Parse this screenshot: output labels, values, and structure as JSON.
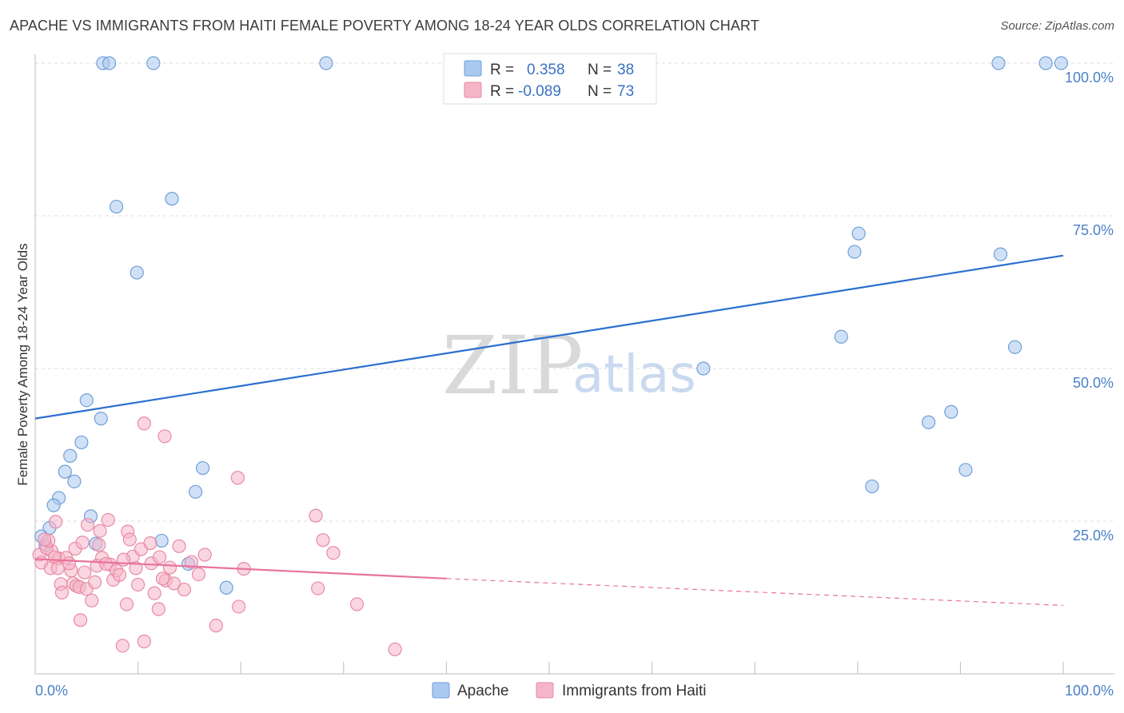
{
  "title": "APACHE VS IMMIGRANTS FROM HAITI FEMALE POVERTY AMONG 18-24 YEAR OLDS CORRELATION CHART",
  "source": "Source: ZipAtlas.com",
  "watermark": {
    "zip": "ZIP",
    "atlas": "atlas"
  },
  "colors": {
    "apache_fill": "#a9c9f0",
    "apache_stroke": "#6f9fd8",
    "apache_line": "#2a6fd0",
    "haiti_fill": "#f5b5c8",
    "haiti_stroke": "#e88aa6",
    "haiti_line": "#e8739a",
    "tick_label": "#4a80c8",
    "grid": "#dddddd"
  },
  "legend": {
    "rows": [
      {
        "series": "apache",
        "r_label": "R =",
        "r_value": "0.358",
        "n_label": "N =",
        "n_value": "38"
      },
      {
        "series": "haiti",
        "r_label": "R =",
        "r_value": "-0.089",
        "n_label": "N =",
        "n_value": "73"
      }
    ]
  },
  "chart_data": {
    "type": "scatter",
    "title": "APACHE VS IMMIGRANTS FROM HAITI FEMALE POVERTY AMONG 18-24 YEAR OLDS CORRELATION CHART",
    "xlabel": "",
    "ylabel": "Female Poverty Among 18-24 Year Olds",
    "xlim": [
      0,
      100
    ],
    "ylim": [
      0,
      100
    ],
    "x_tick_labels": [
      {
        "value": 0,
        "label": "0.0%"
      },
      {
        "value": 100,
        "label": "100.0%"
      }
    ],
    "y_tick_labels": [
      {
        "value": 25,
        "label": "25.0%"
      },
      {
        "value": 50,
        "label": "50.0%"
      },
      {
        "value": 75,
        "label": "75.0%"
      },
      {
        "value": 100,
        "label": "100.0%"
      }
    ],
    "grid": true,
    "legend_position": "top-center",
    "series": [
      {
        "name": "Apache",
        "key": "apache",
        "r": 0.358,
        "n": 38,
        "trend": {
          "x0": 0,
          "y0": 41.8,
          "x1": 100,
          "y1": 68.5
        },
        "points": [
          [
            6.6,
            100
          ],
          [
            7.2,
            100
          ],
          [
            11.5,
            100
          ],
          [
            28.3,
            100
          ],
          [
            93.7,
            100
          ],
          [
            98.3,
            100
          ],
          [
            99.8,
            100
          ],
          [
            7.9,
            76.5
          ],
          [
            13.3,
            77.8
          ],
          [
            9.9,
            65.7
          ],
          [
            80.1,
            72.1
          ],
          [
            79.7,
            69.1
          ],
          [
            93.9,
            68.7
          ],
          [
            78.4,
            55.2
          ],
          [
            95.3,
            53.5
          ],
          [
            65.0,
            50.0
          ],
          [
            86.9,
            41.2
          ],
          [
            89.1,
            42.9
          ],
          [
            81.4,
            30.7
          ],
          [
            90.5,
            33.4
          ],
          [
            5.0,
            44.8
          ],
          [
            6.4,
            41.8
          ],
          [
            4.5,
            37.9
          ],
          [
            3.4,
            35.7
          ],
          [
            2.9,
            33.1
          ],
          [
            3.8,
            31.5
          ],
          [
            2.3,
            28.8
          ],
          [
            1.8,
            27.6
          ],
          [
            1.4,
            23.9
          ],
          [
            5.4,
            25.8
          ],
          [
            16.3,
            33.7
          ],
          [
            15.6,
            29.8
          ],
          [
            12.3,
            21.8
          ],
          [
            5.9,
            21.3
          ],
          [
            14.9,
            18.0
          ],
          [
            18.6,
            14.1
          ],
          [
            0.6,
            22.5
          ],
          [
            1.0,
            21.1
          ]
        ]
      },
      {
        "name": "Immigrants from Haiti",
        "key": "haiti",
        "r": -0.089,
        "n": 73,
        "trend": {
          "x0": 0,
          "y0": 18.8,
          "x1": 40,
          "y1": 15.6
        },
        "trend_dashed": {
          "x0": 40,
          "y0": 15.6,
          "x1": 100,
          "y1": 11.2
        },
        "points": [
          [
            10.6,
            41.0
          ],
          [
            12.6,
            38.9
          ],
          [
            19.7,
            32.1
          ],
          [
            27.3,
            25.9
          ],
          [
            28.0,
            21.9
          ],
          [
            29.0,
            19.8
          ],
          [
            27.5,
            14.0
          ],
          [
            31.3,
            11.4
          ],
          [
            20.3,
            17.2
          ],
          [
            19.8,
            11.0
          ],
          [
            17.6,
            7.9
          ],
          [
            35.0,
            4.0
          ],
          [
            8.5,
            4.6
          ],
          [
            10.6,
            5.3
          ],
          [
            4.4,
            8.8
          ],
          [
            12.0,
            10.6
          ],
          [
            8.9,
            11.4
          ],
          [
            5.5,
            12.0
          ],
          [
            1.6,
            20.1
          ],
          [
            2.3,
            18.9
          ],
          [
            3.0,
            19.0
          ],
          [
            3.5,
            16.9
          ],
          [
            2.5,
            14.7
          ],
          [
            2.6,
            13.3
          ],
          [
            3.7,
            14.8
          ],
          [
            4.0,
            14.4
          ],
          [
            4.3,
            14.2
          ],
          [
            4.8,
            16.6
          ],
          [
            5.0,
            13.9
          ],
          [
            3.9,
            20.5
          ],
          [
            5.1,
            24.4
          ],
          [
            6.3,
            23.4
          ],
          [
            7.1,
            25.2
          ],
          [
            6.2,
            21.1
          ],
          [
            6.5,
            19.0
          ],
          [
            6.0,
            17.7
          ],
          [
            7.3,
            17.9
          ],
          [
            7.6,
            15.4
          ],
          [
            7.9,
            16.9
          ],
          [
            8.2,
            16.2
          ],
          [
            9.0,
            23.3
          ],
          [
            9.2,
            22.0
          ],
          [
            9.5,
            19.2
          ],
          [
            9.8,
            17.3
          ],
          [
            10.3,
            20.4
          ],
          [
            10.0,
            14.6
          ],
          [
            11.2,
            21.4
          ],
          [
            11.3,
            18.1
          ],
          [
            11.6,
            13.2
          ],
          [
            12.1,
            19.1
          ],
          [
            12.7,
            15.3
          ],
          [
            13.1,
            17.4
          ],
          [
            13.5,
            14.8
          ],
          [
            14.0,
            20.9
          ],
          [
            14.5,
            13.8
          ],
          [
            15.2,
            18.3
          ],
          [
            15.9,
            16.3
          ],
          [
            16.5,
            19.5
          ],
          [
            0.4,
            19.5
          ],
          [
            0.6,
            18.2
          ],
          [
            1.1,
            20.6
          ],
          [
            1.3,
            21.8
          ],
          [
            1.5,
            17.3
          ],
          [
            1.9,
            19.1
          ],
          [
            2.2,
            17.3
          ],
          [
            0.9,
            22.0
          ],
          [
            8.6,
            18.7
          ],
          [
            6.9,
            18.0
          ],
          [
            5.8,
            15.0
          ],
          [
            4.6,
            21.5
          ],
          [
            12.4,
            15.6
          ],
          [
            3.3,
            18.1
          ],
          [
            2.0,
            24.9
          ]
        ]
      }
    ]
  }
}
